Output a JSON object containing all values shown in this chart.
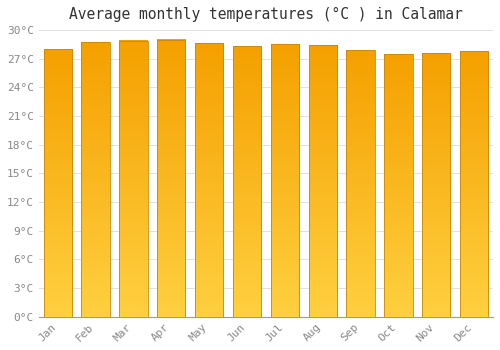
{
  "title": "Average monthly temperatures (°C ) in Calamar",
  "months": [
    "Jan",
    "Feb",
    "Mar",
    "Apr",
    "May",
    "Jun",
    "Jul",
    "Aug",
    "Sep",
    "Oct",
    "Nov",
    "Dec"
  ],
  "values": [
    28.0,
    28.7,
    28.9,
    29.0,
    28.6,
    28.3,
    28.5,
    28.4,
    27.9,
    27.5,
    27.6,
    27.8
  ],
  "bar_color_bottom": "#FFD040",
  "bar_color_top": "#F5A000",
  "bar_edge_color": "#C8880A",
  "background_color": "#FFFFFF",
  "grid_color": "#E0E0E0",
  "ylim": [
    0,
    30
  ],
  "ytick_step": 3,
  "title_fontsize": 10.5,
  "tick_fontsize": 8,
  "tick_label_color": "#888888",
  "bar_width": 0.75
}
